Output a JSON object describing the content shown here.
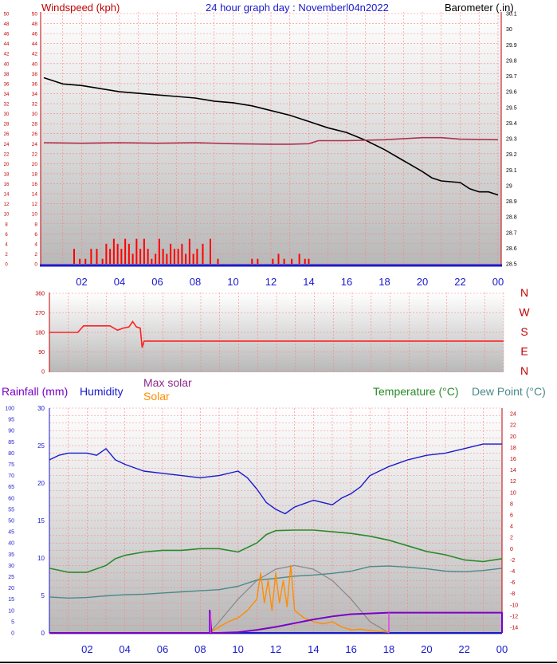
{
  "header": {
    "title_overlap": "24 hour graph day : Novemberl04n2022",
    "windspeed_label": "Windspeed (kph)",
    "barometer_label": "Barometer (.in)"
  },
  "direction_labels": [
    "N",
    "W",
    "S",
    "E",
    "N"
  ],
  "bottom_header": {
    "rainfall_label": "Rainfall (mm)",
    "humidity_label": "Humidity",
    "maxsolar_label": "Max solar",
    "solar_label": "Solar",
    "temperature_label": "Temperature (°C)",
    "dewpoint_label": "Dew Point (°C)"
  },
  "colors": {
    "wind_axis": "#c00000",
    "baro_line": "#000000",
    "wind_line": "#b03050",
    "gust_bars": "#ff0000",
    "direction_line": "#ff2020",
    "humidity": "#1a1acc",
    "temperature": "#2a8a2a",
    "dewpoint": "#4a8a8a",
    "solar": "#ff8c00",
    "maxsolar": "#888888",
    "rain": "#7a00c8",
    "axis_blue": "#1a1acc",
    "grid": "#ff8080"
  },
  "chart_data": [
    {
      "type": "line",
      "title": "24 hour graph day : Novemberl04n2022",
      "x_ticks": [
        "02",
        "04",
        "06",
        "08",
        "10",
        "12",
        "14",
        "16",
        "18",
        "20",
        "22",
        "00"
      ],
      "left_axis_outer_ticks": [
        "0",
        "2",
        "4",
        "6",
        "8",
        "10",
        "12",
        "14",
        "16",
        "18",
        "20",
        "22",
        "24",
        "26",
        "28",
        "30",
        "32",
        "34",
        "36",
        "38",
        "40",
        "42",
        "44",
        "46",
        "48",
        "50"
      ],
      "left_axis_inner_ticks": [
        "0",
        "2",
        "4",
        "6",
        "8",
        "10",
        "12",
        "14",
        "16",
        "18",
        "20",
        "22",
        "24",
        "26",
        "28",
        "30",
        "32",
        "34",
        "36",
        "38",
        "40",
        "42",
        "44",
        "46",
        "48",
        "50"
      ],
      "right_axis_ticks": [
        "28.5",
        "28.6",
        "28.7",
        "28.8",
        "28.9",
        "29",
        "29.1",
        "29.2",
        "29.3",
        "29.4",
        "29.5",
        "29.6",
        "29.7",
        "29.8",
        "29.9",
        "30",
        "30.1"
      ],
      "ylim_left": [
        0,
        50
      ],
      "ylim_right": [
        28.5,
        30.1
      ],
      "series": [
        {
          "name": "Barometer",
          "axis": "right",
          "x": [
            0,
            0.5,
            1,
            2,
            3,
            4,
            5,
            6,
            7,
            8,
            9,
            10,
            11,
            12,
            13,
            14,
            15,
            16,
            17,
            18,
            19,
            20,
            20.5,
            21,
            22,
            22.5,
            23,
            23.5,
            24
          ],
          "values": [
            29.69,
            29.67,
            29.65,
            29.64,
            29.62,
            29.6,
            29.59,
            29.58,
            29.57,
            29.56,
            29.54,
            29.53,
            29.51,
            29.48,
            29.45,
            29.41,
            29.37,
            29.34,
            29.29,
            29.23,
            29.16,
            29.09,
            29.05,
            29.03,
            29.02,
            28.98,
            28.96,
            28.96,
            28.94
          ]
        },
        {
          "name": "Windspeed",
          "axis": "left",
          "x": [
            0,
            2,
            4,
            6,
            8,
            10,
            12,
            13,
            14,
            14.5,
            16,
            18,
            20,
            21,
            22,
            24
          ],
          "values": [
            24.2,
            24.1,
            24.2,
            24.1,
            24.2,
            24.0,
            23.9,
            23.9,
            24.0,
            24.6,
            24.6,
            24.8,
            25.2,
            25.2,
            24.9,
            24.8
          ]
        },
        {
          "name": "Gust",
          "axis": "left",
          "style": "bars",
          "x": [
            1.6,
            1.9,
            2.2,
            2.5,
            2.8,
            3.1,
            3.3,
            3.5,
            3.7,
            3.9,
            4.1,
            4.3,
            4.5,
            4.7,
            4.9,
            5.1,
            5.3,
            5.5,
            5.7,
            5.9,
            6.1,
            6.3,
            6.5,
            6.7,
            6.9,
            7.1,
            7.3,
            7.5,
            7.7,
            7.9,
            8.1,
            8.4,
            8.8,
            9.2,
            11.0,
            11.3,
            12.1,
            12.4,
            12.7,
            13.1,
            13.5,
            13.8,
            14.0
          ],
          "values": [
            3,
            1,
            1,
            3,
            3,
            1,
            4,
            3,
            5,
            4,
            3,
            5,
            4,
            2,
            5,
            3,
            5,
            3,
            1,
            2,
            5,
            3,
            2,
            4,
            3,
            3,
            4,
            2,
            5,
            2,
            3,
            4,
            5,
            1,
            1,
            1,
            1,
            2,
            1,
            1,
            2,
            1,
            1
          ]
        }
      ]
    },
    {
      "type": "line",
      "title": "",
      "y_ticks": [
        "0",
        "90",
        "180",
        "270",
        "360"
      ],
      "ylim": [
        0,
        360
      ],
      "series": [
        {
          "name": "Wind direction",
          "x": [
            0,
            1.5,
            1.8,
            3.2,
            3.6,
            3.9,
            4.2,
            4.4,
            4.6,
            4.8,
            4.9,
            5.0,
            5.1,
            24
          ],
          "values": [
            180,
            180,
            210,
            210,
            190,
            200,
            205,
            230,
            205,
            200,
            110,
            140,
            140,
            140
          ]
        }
      ]
    },
    {
      "type": "line",
      "title": "",
      "x_ticks": [
        "02",
        "04",
        "06",
        "08",
        "10",
        "12",
        "14",
        "16",
        "18",
        "20",
        "22",
        "00"
      ],
      "humidity_ticks": [
        "0",
        "5",
        "10",
        "15",
        "20",
        "25",
        "30",
        "35",
        "40",
        "45",
        "50",
        "55",
        "60",
        "65",
        "70",
        "75",
        "80",
        "85",
        "90",
        "95",
        "100"
      ],
      "rainfall_ticks": [
        "0",
        "5",
        "10",
        "15",
        "20",
        "25",
        "30"
      ],
      "temperature_ticks": [
        "-14",
        "-12",
        "-10",
        "-8",
        "-6",
        "-4",
        "-2",
        "0",
        "2",
        "4",
        "6",
        "8",
        "10",
        "12",
        "14",
        "16",
        "18",
        "20",
        "22",
        "24"
      ],
      "ylim_left": [
        0,
        30
      ],
      "ylim_humidity": [
        0,
        100
      ],
      "ylim_right": [
        -15,
        25
      ],
      "series": [
        {
          "name": "Humidity",
          "axis": "humidity",
          "x": [
            0,
            0.5,
            1,
            2,
            2.5,
            3,
            3.5,
            4,
            5,
            6,
            7,
            8,
            9,
            10,
            10.5,
            11,
            11.5,
            12,
            12.5,
            13,
            14,
            15,
            15.5,
            16,
            16.5,
            17,
            18,
            19,
            20,
            21,
            22,
            23,
            24
          ],
          "values": [
            77,
            79,
            80,
            80,
            79,
            82,
            77,
            75,
            72,
            71,
            70,
            69,
            70,
            72,
            69,
            64,
            58,
            55,
            53,
            56,
            59,
            57,
            60,
            62,
            65,
            70,
            74,
            77,
            79,
            80,
            82,
            84,
            84
          ]
        },
        {
          "name": "Temperature",
          "axis": "right",
          "x": [
            0,
            1,
            2,
            3,
            3.5,
            4,
            5,
            6,
            7,
            8,
            9,
            10,
            11,
            11.5,
            12,
            13,
            14,
            15,
            16,
            17,
            18,
            19,
            20,
            21,
            22,
            23,
            24
          ],
          "values": [
            -3.5,
            -4.2,
            -4.2,
            -3,
            -1.8,
            -1.2,
            -0.6,
            -0.3,
            -0.3,
            0,
            0,
            -0.6,
            1,
            2.5,
            3.2,
            3.3,
            3.3,
            3.0,
            2.7,
            2.2,
            1.5,
            0.5,
            -0.5,
            -1.1,
            -2,
            -2.3,
            -1.8
          ]
        },
        {
          "name": "Dew Point",
          "axis": "right",
          "x": [
            0,
            1,
            2,
            3,
            4,
            5,
            6,
            7,
            8,
            9,
            10,
            11,
            12,
            13,
            14,
            15,
            16,
            17,
            18,
            19,
            20,
            21,
            22,
            23,
            24
          ],
          "values": [
            -8.6,
            -8.8,
            -8.7,
            -8.4,
            -8.2,
            -8.1,
            -7.9,
            -7.7,
            -7.5,
            -7.3,
            -6.7,
            -5.6,
            -5.3,
            -4.9,
            -4.7,
            -4.4,
            -4.0,
            -3.2,
            -3.1,
            -3.3,
            -3.6,
            -4.0,
            -4.1,
            -3.9,
            -3.5
          ]
        },
        {
          "name": "Solar",
          "axis": "left",
          "x": [
            8.6,
            9,
            9.5,
            10,
            10.5,
            11,
            11.2,
            11.4,
            11.6,
            11.8,
            12,
            12.2,
            12.4,
            12.6,
            12.8,
            13,
            13.5,
            14,
            14.5,
            15,
            15.5,
            16,
            16.5,
            17,
            17.5,
            18
          ],
          "values": [
            0.2,
            0.8,
            1.5,
            2,
            3,
            4.5,
            8,
            4,
            7,
            3,
            8,
            4,
            7,
            3.5,
            9,
            3,
            2,
            1.5,
            1.2,
            1.5,
            0.8,
            0.4,
            0.5,
            0.3,
            0.2,
            0.1
          ]
        },
        {
          "name": "Max solar",
          "axis": "left",
          "x": [
            8.5,
            9,
            10,
            11,
            12,
            13,
            14,
            15,
            16,
            17,
            18
          ],
          "values": [
            0,
            1.5,
            4.5,
            7,
            8.5,
            9,
            8.5,
            7,
            4.5,
            1.5,
            0
          ]
        },
        {
          "name": "Rainfall",
          "axis": "left",
          "x": [
            0,
            8.5,
            8.5,
            8.6,
            9,
            10,
            11,
            12,
            13,
            14,
            15,
            16,
            17,
            18,
            18,
            24,
            24
          ],
          "values": [
            0,
            0,
            3,
            0,
            0,
            0.1,
            0.4,
            0.8,
            1.3,
            1.8,
            2.2,
            2.5,
            2.6,
            2.7,
            2.7,
            2.7,
            0
          ]
        }
      ]
    }
  ]
}
